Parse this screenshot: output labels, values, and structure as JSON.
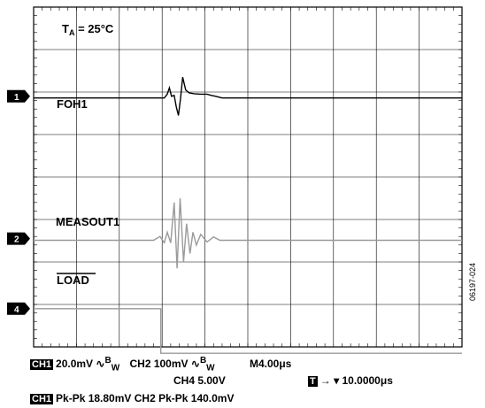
{
  "chart_data": {
    "type": "line",
    "title": "",
    "annotation_temp": {
      "main": "T",
      "sub": "A",
      "rest": " = 25°C"
    },
    "channel_markers": [
      "1",
      "2",
      "4"
    ],
    "grid": {
      "divisions_x": 10,
      "divisions_y": 8,
      "minor_ticks": 5
    },
    "series": [
      {
        "name": "FOH1",
        "color": "#000000",
        "x": [
          0,
          3.05,
          3.12,
          3.17,
          3.22,
          3.28,
          3.33,
          3.38,
          3.43,
          3.48,
          3.55,
          3.63,
          3.75,
          3.9,
          4.05,
          4.15,
          4.25,
          4.4,
          10
        ],
        "y": [
          -0.04,
          -0.04,
          0.05,
          0.2,
          0.0,
          0.02,
          -0.25,
          -0.45,
          -0.05,
          0.45,
          0.15,
          0.08,
          0.06,
          0.05,
          0.05,
          0.02,
          0.0,
          -0.04,
          -0.04
        ]
      },
      {
        "name": "MEASOUT1",
        "color": "#9a9a9a",
        "x": [
          0,
          2.8,
          2.95,
          3.05,
          3.12,
          3.2,
          3.28,
          3.35,
          3.42,
          3.5,
          3.57,
          3.65,
          3.72,
          3.8,
          3.9,
          4.05,
          4.2,
          4.35,
          10
        ],
        "y": [
          -0.04,
          -0.04,
          0.05,
          -0.1,
          0.15,
          -0.1,
          0.85,
          -0.7,
          0.95,
          -0.55,
          0.35,
          -0.35,
          0.15,
          -0.15,
          0.1,
          -0.08,
          0.04,
          -0.04,
          -0.04
        ]
      },
      {
        "name": "LOAD",
        "color": "#9a9a9a",
        "x": [
          0,
          2.97,
          2.97,
          10
        ],
        "y": [
          0,
          0,
          -1.05,
          -1.05
        ]
      }
    ]
  },
  "footer": {
    "line1_tag": "CH1",
    "line1_ch1": "20.0mV",
    "line1_bw1": "B",
    "line1_bw1_sub": "W",
    "line1_ch2": "CH2  100mV",
    "line1_bw2": "B",
    "line1_bw2_sub": "W",
    "line1_time": "M4.00μs",
    "line2_ch4": "CH4  5.00V",
    "line2_trig_tag": "T",
    "line2_trig": "→ ▾ 10.0000μs",
    "line3_tag": "CH1",
    "line3_text": "Pk-Pk  18.80mV  CH2 Pk-Pk  140.0mV"
  },
  "figure_id": "06197-024"
}
